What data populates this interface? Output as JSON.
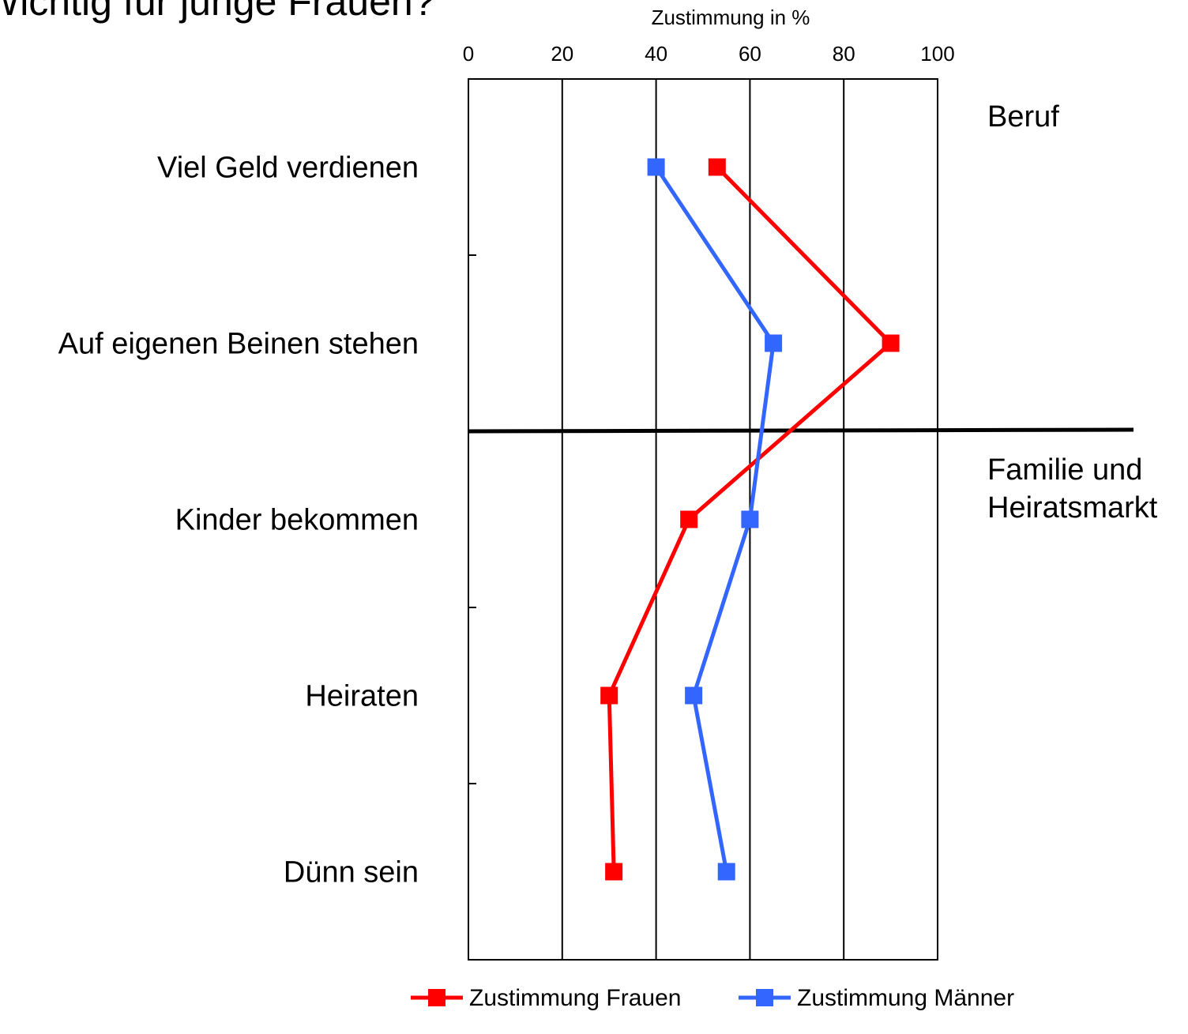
{
  "chart_data": {
    "type": "line",
    "orientation": "horizontal",
    "title": "Wichtig für junge Frauen?",
    "x_label": "Zustimmung in %",
    "categories": [
      "Viel Geld verdienen",
      "Auf eigenen Beinen stehen",
      "Kinder bekommen",
      "Heiraten",
      "Dünn sein"
    ],
    "series": [
      {
        "name": "Zustimmung Frauen",
        "color": "#ff0000",
        "values": [
          53,
          90,
          47,
          30,
          31
        ]
      },
      {
        "name": "Zustimmung Männer",
        "color": "#3366ff",
        "values": [
          40,
          65,
          60,
          48,
          55
        ]
      }
    ],
    "xlim": [
      0,
      100
    ],
    "xticks": [
      0,
      20,
      40,
      60,
      80,
      100
    ],
    "grid": true,
    "annotations": [
      "Beruf",
      "Familie und",
      "Heiratsmarkt"
    ],
    "legend": "bottom"
  }
}
